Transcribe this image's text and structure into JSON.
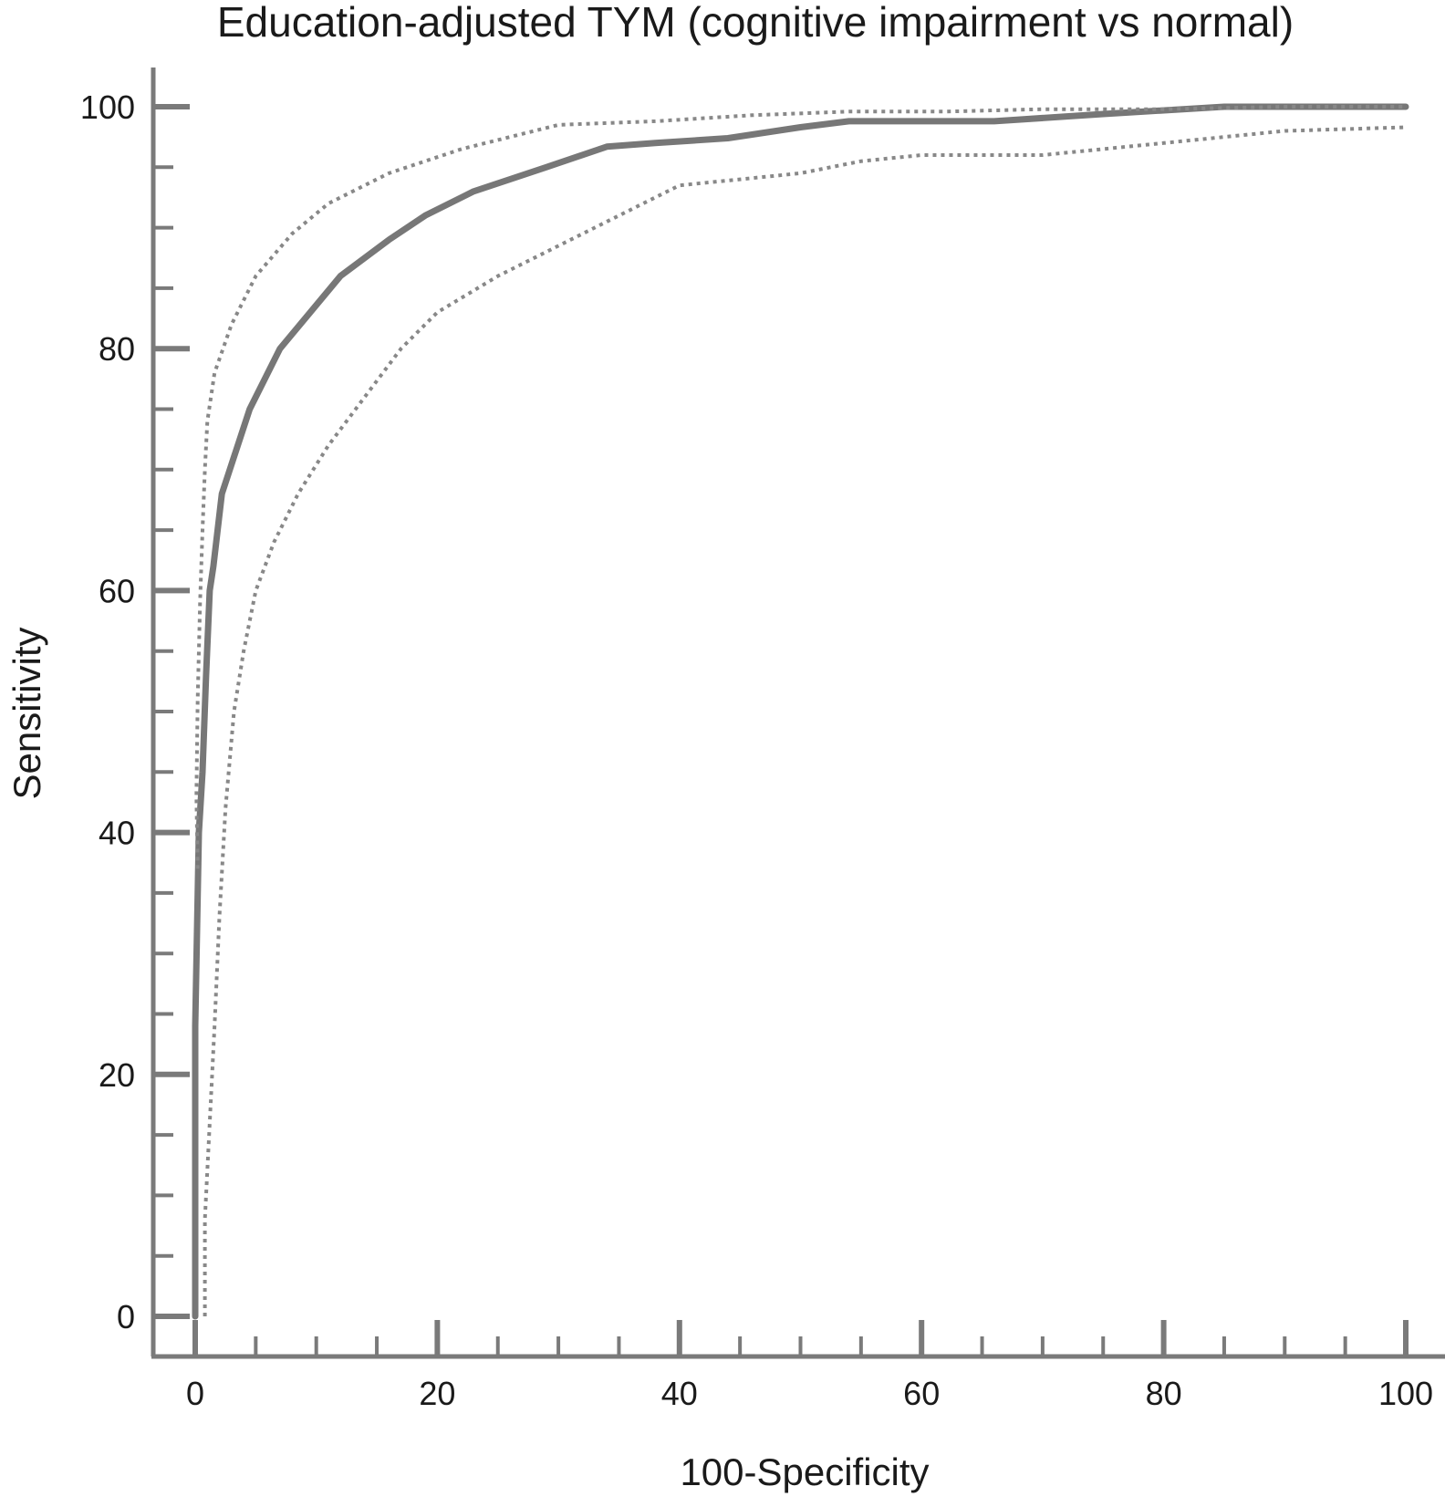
{
  "chart_data": {
    "type": "line",
    "title": "Education-adjusted TYM (cognitive impairment vs normal)",
    "xlabel": "100-Specificity",
    "ylabel": "Sensitivity",
    "xlim": [
      0,
      100
    ],
    "ylim": [
      0,
      100
    ],
    "xticks": [
      0,
      20,
      40,
      60,
      80,
      100
    ],
    "yticks": [
      0,
      20,
      40,
      60,
      80,
      100
    ],
    "grid": false,
    "series": [
      {
        "style": "solid",
        "color": "#777777",
        "x": [
          0,
          0,
          0.3,
          0.6,
          0.9,
          1.2,
          1.5,
          2.2,
          4.5,
          7,
          9.5,
          12,
          16,
          19,
          23,
          29,
          34,
          38,
          44,
          50,
          54,
          60,
          66,
          75,
          85,
          90,
          100
        ],
        "y": [
          0,
          24,
          40,
          45,
          53,
          60,
          62,
          68,
          75,
          80,
          83,
          86,
          89,
          91,
          93,
          95,
          96.7,
          97,
          97.4,
          98.3,
          98.8,
          98.8,
          98.8,
          99.4,
          100,
          100,
          100
        ]
      },
      {
        "style": "dotted",
        "color": "#888888",
        "x": [
          0.2,
          0.1,
          0.2,
          0.4,
          0.6,
          0.8,
          1,
          1.6,
          3,
          5,
          8,
          11,
          16,
          22,
          30,
          38,
          46,
          54,
          62,
          70,
          80,
          90,
          100
        ],
        "y": [
          37,
          43,
          51,
          59,
          65,
          70,
          74,
          78,
          82,
          86,
          89.5,
          92,
          94.5,
          96.5,
          98.5,
          98.8,
          99.3,
          99.6,
          99.6,
          99.8,
          99.8,
          100,
          100
        ]
      },
      {
        "style": "dotted",
        "color": "#888888",
        "x": [
          0.8,
          0.8,
          1.2,
          1.6,
          2,
          2.5,
          3.2,
          4,
          5,
          6.5,
          8.5,
          11,
          14,
          17,
          20,
          25,
          30,
          35,
          40,
          45,
          50,
          55,
          60,
          65,
          70,
          80,
          90,
          100
        ],
        "y": [
          0,
          8,
          16,
          24,
          33,
          42,
          50,
          55,
          60,
          64,
          68,
          72,
          76,
          80,
          83,
          86,
          88.5,
          91,
          93.5,
          94,
          94.5,
          95.5,
          96,
          96,
          96,
          97,
          98,
          98.3
        ]
      }
    ]
  }
}
